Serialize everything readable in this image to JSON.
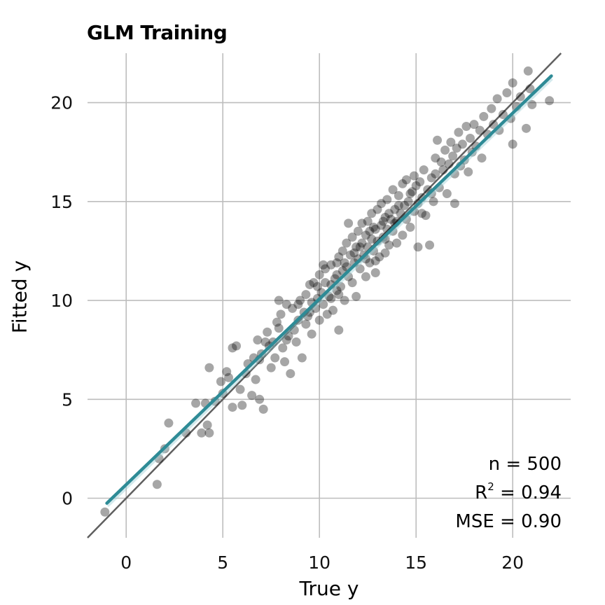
{
  "chart_data": {
    "type": "scatter",
    "title": "GLM Training",
    "xlabel": "True y",
    "ylabel": "Fitted y",
    "xlim": [
      -2,
      23
    ],
    "ylim": [
      -2,
      22.5
    ],
    "xticks": [
      0,
      5,
      10,
      15,
      20
    ],
    "yticks": [
      0,
      5,
      10,
      15,
      20
    ],
    "grid": true,
    "reference_line": {
      "kind": "identity",
      "slope": 1,
      "intercept": 0,
      "color": "#5f5f5f"
    },
    "fit_line": {
      "color": "#2e8b96",
      "x": [
        -1.0,
        22.0
      ],
      "y": [
        -0.25,
        21.35
      ]
    },
    "point_color": "#000000",
    "point_opacity": 0.35,
    "annotations": {
      "n_label": "n = 500",
      "r2_prefix": "R",
      "r2_sup": "2",
      "r2_value": " = 0.94",
      "mse_label": "MSE = 0.90"
    },
    "points_note_n": 500,
    "points": [
      [
        -1.1,
        -0.7
      ],
      [
        1.6,
        0.7
      ],
      [
        1.7,
        2.0
      ],
      [
        2.0,
        2.5
      ],
      [
        2.2,
        3.8
      ],
      [
        3.1,
        3.3
      ],
      [
        3.6,
        4.8
      ],
      [
        3.9,
        3.3
      ],
      [
        4.1,
        4.8
      ],
      [
        4.2,
        3.7
      ],
      [
        4.3,
        3.3
      ],
      [
        4.3,
        6.6
      ],
      [
        4.6,
        4.9
      ],
      [
        4.9,
        5.9
      ],
      [
        5.0,
        5.3
      ],
      [
        5.2,
        6.4
      ],
      [
        5.3,
        6.1
      ],
      [
        5.5,
        4.6
      ],
      [
        5.5,
        7.6
      ],
      [
        5.7,
        7.7
      ],
      [
        5.9,
        5.5
      ],
      [
        6.0,
        4.7
      ],
      [
        6.2,
        6.3
      ],
      [
        6.3,
        6.8
      ],
      [
        6.5,
        5.2
      ],
      [
        6.6,
        7.1
      ],
      [
        6.7,
        6.0
      ],
      [
        6.8,
        8.0
      ],
      [
        6.9,
        5.0
      ],
      [
        7.0,
        7.3
      ],
      [
        7.1,
        4.5
      ],
      [
        7.2,
        7.9
      ],
      [
        7.3,
        8.4
      ],
      [
        7.5,
        6.6
      ],
      [
        7.6,
        7.9
      ],
      [
        7.7,
        7.1
      ],
      [
        7.8,
        8.9
      ],
      [
        7.9,
        8.6
      ],
      [
        7.9,
        10.0
      ],
      [
        8.0,
        9.3
      ],
      [
        8.1,
        7.6
      ],
      [
        8.2,
        6.9
      ],
      [
        8.3,
        8.0
      ],
      [
        8.3,
        9.8
      ],
      [
        8.4,
        8.2
      ],
      [
        8.5,
        6.3
      ],
      [
        8.6,
        9.6
      ],
      [
        8.7,
        8.5
      ],
      [
        8.8,
        7.9
      ],
      [
        8.9,
        9.0
      ],
      [
        9.0,
        10.0
      ],
      [
        9.1,
        7.1
      ],
      [
        9.2,
        9.4
      ],
      [
        9.3,
        8.8
      ],
      [
        9.3,
        10.3
      ],
      [
        9.4,
        9.2
      ],
      [
        9.5,
        10.8
      ],
      [
        9.6,
        8.3
      ],
      [
        9.6,
        9.9
      ],
      [
        9.7,
        10.9
      ],
      [
        9.8,
        9.6
      ],
      [
        9.9,
        10.1
      ],
      [
        10.0,
        9.0
      ],
      [
        10.0,
        11.3
      ],
      [
        10.1,
        10.4
      ],
      [
        10.2,
        9.8
      ],
      [
        10.3,
        10.9
      ],
      [
        10.3,
        11.6
      ],
      [
        10.4,
        9.3
      ],
      [
        10.5,
        10.2
      ],
      [
        10.6,
        11.8
      ],
      [
        10.6,
        10.8
      ],
      [
        10.7,
        9.5
      ],
      [
        10.8,
        11.1
      ],
      [
        10.9,
        11.9
      ],
      [
        10.9,
        10.5
      ],
      [
        11.0,
        8.5
      ],
      [
        11.0,
        12.2
      ],
      [
        11.1,
        10.7
      ],
      [
        11.2,
        11.5
      ],
      [
        11.2,
        12.5
      ],
      [
        11.3,
        10.0
      ],
      [
        11.4,
        11.7
      ],
      [
        11.4,
        12.9
      ],
      [
        11.5,
        11.2
      ],
      [
        11.6,
        12.3
      ],
      [
        11.7,
        10.9
      ],
      [
        11.7,
        13.2
      ],
      [
        11.8,
        11.9
      ],
      [
        11.9,
        12.7
      ],
      [
        11.9,
        10.2
      ],
      [
        12.0,
        12.1
      ],
      [
        12.0,
        13.5
      ],
      [
        12.1,
        11.6
      ],
      [
        12.2,
        12.9
      ],
      [
        12.2,
        13.9
      ],
      [
        12.3,
        12.3
      ],
      [
        12.4,
        11.2
      ],
      [
        12.4,
        13.3
      ],
      [
        12.5,
        12.7
      ],
      [
        12.5,
        14.0
      ],
      [
        12.6,
        11.9
      ],
      [
        12.7,
        13.1
      ],
      [
        12.7,
        14.4
      ],
      [
        12.8,
        12.5
      ],
      [
        12.9,
        13.6
      ],
      [
        12.9,
        11.4
      ],
      [
        13.0,
        13.0
      ],
      [
        13.0,
        14.6
      ],
      [
        13.1,
        12.2
      ],
      [
        13.2,
        13.8
      ],
      [
        13.2,
        14.9
      ],
      [
        13.3,
        13.2
      ],
      [
        13.4,
        12.4
      ],
      [
        13.4,
        14.2
      ],
      [
        13.5,
        13.6
      ],
      [
        13.5,
        15.1
      ],
      [
        13.6,
        12.8
      ],
      [
        13.7,
        14.1
      ],
      [
        13.8,
        15.6
      ],
      [
        13.8,
        13.5
      ],
      [
        13.9,
        14.6
      ],
      [
        14.0,
        12.9
      ],
      [
        14.0,
        14.0
      ],
      [
        14.1,
        15.3
      ],
      [
        14.2,
        14.4
      ],
      [
        14.3,
        13.3
      ],
      [
        14.3,
        15.9
      ],
      [
        14.4,
        14.8
      ],
      [
        14.5,
        14.1
      ],
      [
        14.5,
        16.1
      ],
      [
        14.6,
        15.0
      ],
      [
        14.7,
        13.7
      ],
      [
        14.8,
        15.5
      ],
      [
        14.9,
        16.3
      ],
      [
        14.9,
        14.5
      ],
      [
        15.0,
        15.8
      ],
      [
        15.1,
        12.7
      ],
      [
        15.1,
        14.9
      ],
      [
        15.2,
        16.0
      ],
      [
        15.3,
        15.2
      ],
      [
        15.4,
        16.6
      ],
      [
        15.5,
        14.3
      ],
      [
        15.6,
        15.6
      ],
      [
        15.7,
        12.8
      ],
      [
        15.8,
        16.2
      ],
      [
        15.9,
        15.0
      ],
      [
        16.0,
        17.2
      ],
      [
        16.0,
        16.4
      ],
      [
        16.1,
        18.1
      ],
      [
        16.2,
        15.7
      ],
      [
        16.3,
        17.0
      ],
      [
        16.4,
        16.6
      ],
      [
        16.5,
        17.6
      ],
      [
        16.6,
        15.4
      ],
      [
        16.7,
        16.9
      ],
      [
        16.8,
        18.0
      ],
      [
        16.9,
        17.3
      ],
      [
        17.0,
        14.9
      ],
      [
        17.0,
        16.4
      ],
      [
        17.1,
        17.7
      ],
      [
        17.2,
        18.5
      ],
      [
        17.3,
        16.8
      ],
      [
        17.4,
        17.9
      ],
      [
        17.5,
        17.1
      ],
      [
        17.6,
        18.8
      ],
      [
        17.7,
        16.5
      ],
      [
        17.8,
        18.2
      ],
      [
        17.9,
        17.5
      ],
      [
        18.0,
        18.9
      ],
      [
        18.1,
        17.8
      ],
      [
        18.3,
        18.6
      ],
      [
        18.4,
        17.2
      ],
      [
        18.5,
        19.3
      ],
      [
        18.7,
        18.4
      ],
      [
        18.9,
        19.7
      ],
      [
        19.0,
        18.9
      ],
      [
        19.2,
        20.2
      ],
      [
        19.3,
        18.6
      ],
      [
        19.5,
        19.4
      ],
      [
        19.7,
        20.5
      ],
      [
        19.9,
        19.2
      ],
      [
        20.0,
        17.9
      ],
      [
        20.0,
        21.0
      ],
      [
        20.2,
        19.8
      ],
      [
        20.4,
        20.3
      ],
      [
        20.7,
        18.7
      ],
      [
        20.8,
        21.6
      ],
      [
        20.9,
        20.7
      ],
      [
        21.0,
        19.9
      ],
      [
        21.9,
        20.1
      ],
      [
        11.5,
        13.9
      ],
      [
        10.9,
        11.3
      ],
      [
        12.6,
        13.5
      ],
      [
        13.3,
        14.0
      ],
      [
        12.1,
        12.7
      ],
      [
        11.8,
        12.4
      ],
      [
        13.9,
        13.9
      ],
      [
        14.7,
        15.4
      ],
      [
        12.9,
        12.0
      ],
      [
        11.3,
        11.9
      ],
      [
        10.6,
        10.1
      ],
      [
        10.2,
        11.8
      ],
      [
        9.9,
        10.7
      ],
      [
        13.6,
        14.4
      ],
      [
        14.1,
        14.8
      ],
      [
        15.3,
        14.4
      ],
      [
        15.8,
        15.4
      ],
      [
        12.4,
        12.1
      ],
      [
        11.0,
        10.3
      ],
      [
        9.5,
        9.4
      ],
      [
        8.9,
        9.8
      ],
      [
        7.4,
        7.7
      ],
      [
        6.9,
        7.0
      ],
      [
        12.8,
        13.7
      ],
      [
        13.4,
        13.1
      ]
    ]
  }
}
